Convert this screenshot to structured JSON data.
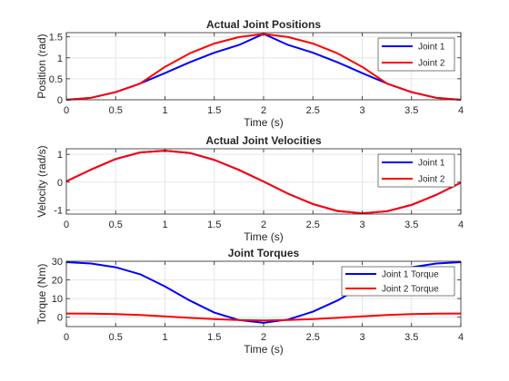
{
  "chart_data": [
    {
      "type": "line",
      "title": "Actual Joint Positions",
      "xlabel": "Time (s)",
      "ylabel": "Position (rad)",
      "xlim": [
        0,
        4
      ],
      "ylim": [
        0,
        1.6
      ],
      "xticks": [
        0,
        0.5,
        1,
        1.5,
        2,
        2.5,
        3,
        3.5,
        4
      ],
      "xtick_labels": [
        "0",
        "0.5",
        "1",
        "1.5",
        "2",
        "2.5",
        "3",
        "3.5",
        "4"
      ],
      "yticks": [
        0,
        0.5,
        1,
        1.5
      ],
      "ytick_labels": [
        "0",
        "0.5",
        "1",
        "1.5"
      ],
      "grid": true,
      "legend": "top-right",
      "x": [
        0,
        0.25,
        0.5,
        0.75,
        1,
        1.25,
        1.5,
        1.75,
        2,
        2.25,
        2.5,
        2.75,
        3,
        3.25,
        3.5,
        3.75,
        4
      ],
      "series": [
        {
          "name": "Joint 1",
          "color": "#0000ff",
          "values": [
            0,
            0.047,
            0.183,
            0.389,
            0.637,
            0.894,
            1.124,
            1.306,
            1.571,
            1.306,
            1.124,
            0.894,
            0.637,
            0.389,
            0.183,
            0.047,
            0
          ]
        },
        {
          "name": "Joint 2",
          "color": "#ff0000",
          "values": [
            0,
            0.047,
            0.183,
            0.389,
            0.785,
            1.106,
            1.341,
            1.494,
            1.571,
            1.494,
            1.341,
            1.106,
            0.785,
            0.389,
            0.183,
            0.047,
            0
          ]
        }
      ]
    },
    {
      "type": "line",
      "title": "Actual Joint Velocities",
      "xlabel": "Time (s)",
      "ylabel": "Velocity (rad/s)",
      "xlim": [
        0,
        4
      ],
      "ylim": [
        -1.15,
        1.2
      ],
      "xticks": [
        0,
        0.5,
        1,
        1.5,
        2,
        2.5,
        3,
        3.5,
        4
      ],
      "xtick_labels": [
        "0",
        "0.5",
        "1",
        "1.5",
        "2",
        "2.5",
        "3",
        "3.5",
        "4"
      ],
      "yticks": [
        -1,
        0,
        1
      ],
      "ytick_labels": [
        "-1",
        "0",
        "1"
      ],
      "grid": true,
      "legend": "top-right",
      "x": [
        0,
        0.25,
        0.5,
        0.75,
        1,
        1.25,
        1.5,
        1.75,
        2,
        2.25,
        2.5,
        2.75,
        3,
        3.25,
        3.5,
        3.75,
        4
      ],
      "series": [
        {
          "name": "Joint 1",
          "color": "#0000ff",
          "values": [
            0.03,
            0.45,
            0.83,
            1.07,
            1.13,
            1.05,
            0.8,
            0.44,
            0.02,
            -0.42,
            -0.79,
            -1.04,
            -1.12,
            -1.05,
            -0.82,
            -0.46,
            -0.02
          ]
        },
        {
          "name": "Joint 2",
          "color": "#ff0000",
          "values": [
            0.03,
            0.45,
            0.83,
            1.07,
            1.13,
            1.05,
            0.8,
            0.44,
            0.02,
            -0.42,
            -0.79,
            -1.04,
            -1.12,
            -1.05,
            -0.82,
            -0.46,
            -0.02
          ]
        }
      ]
    },
    {
      "type": "line",
      "title": "Joint Torques",
      "xlabel": "Time (s)",
      "ylabel": "Torque (Nm)",
      "xlim": [
        0,
        4
      ],
      "ylim": [
        -5,
        30
      ],
      "xticks": [
        0,
        0.5,
        1,
        1.5,
        2,
        2.5,
        3,
        3.5,
        4
      ],
      "xtick_labels": [
        "0",
        "0.5",
        "1",
        "1.5",
        "2",
        "2.5",
        "3",
        "3.5",
        "4"
      ],
      "yticks": [
        0,
        10,
        20,
        30
      ],
      "ytick_labels": [
        "0",
        "10",
        "20",
        "30"
      ],
      "grid": true,
      "legend": "top-right",
      "x": [
        0,
        0.25,
        0.5,
        0.75,
        1,
        1.25,
        1.5,
        1.75,
        2,
        2.25,
        2.5,
        2.75,
        3,
        3.25,
        3.5,
        3.75,
        4
      ],
      "series": [
        {
          "name": "Joint 1 Torque",
          "color": "#0000ff",
          "values": [
            29.5,
            28.8,
            26.8,
            23.0,
            16.5,
            9.0,
            2.5,
            -1.5,
            -3.0,
            -1.2,
            3.0,
            9.0,
            16.5,
            23.0,
            26.8,
            28.8,
            29.5
          ]
        },
        {
          "name": "Joint 2 Torque",
          "color": "#ff0000",
          "values": [
            2.0,
            1.9,
            1.7,
            1.2,
            0.5,
            -0.3,
            -1.0,
            -1.5,
            -1.7,
            -1.5,
            -1.0,
            -0.3,
            0.5,
            1.2,
            1.7,
            1.9,
            2.0
          ]
        }
      ]
    }
  ]
}
